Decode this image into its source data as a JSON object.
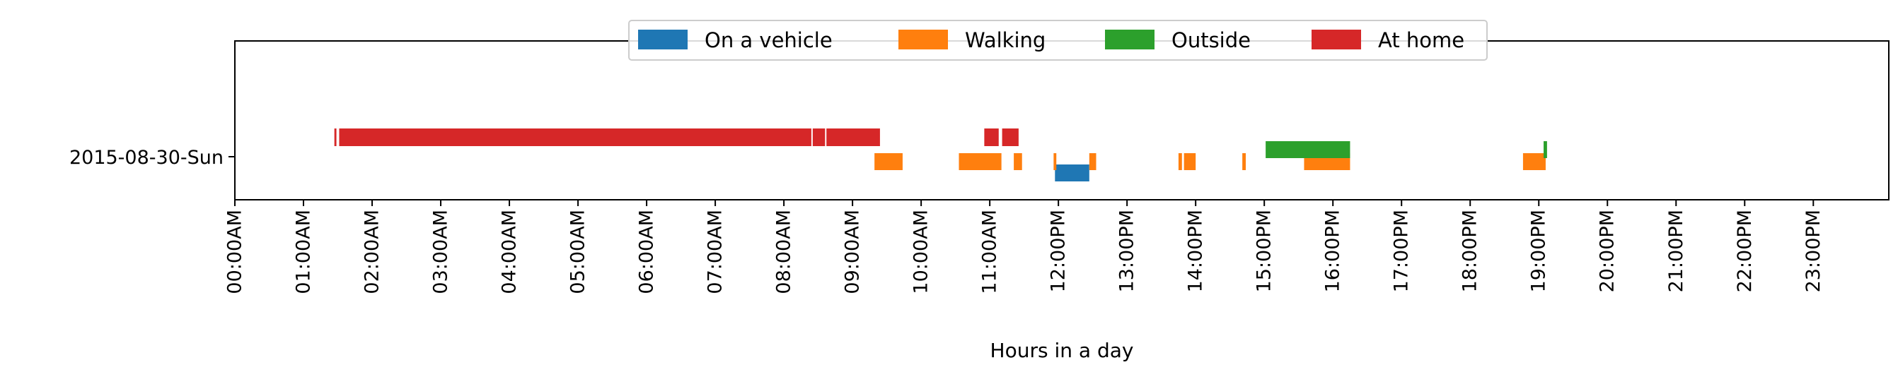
{
  "chart_data": {
    "type": "timeline",
    "title": "",
    "xlabel": "Hours in a day",
    "ylabel": "",
    "xlim": [
      0,
      24.1
    ],
    "grid": false,
    "legend_position": "top-center",
    "row_label": "2015-08-30-Sun",
    "x_ticks": [
      {
        "hour": 0,
        "label": "00:00AM"
      },
      {
        "hour": 1,
        "label": "01:00AM"
      },
      {
        "hour": 2,
        "label": "02:00AM"
      },
      {
        "hour": 3,
        "label": "03:00AM"
      },
      {
        "hour": 4,
        "label": "04:00AM"
      },
      {
        "hour": 5,
        "label": "05:00AM"
      },
      {
        "hour": 6,
        "label": "06:00AM"
      },
      {
        "hour": 7,
        "label": "07:00AM"
      },
      {
        "hour": 8,
        "label": "08:00AM"
      },
      {
        "hour": 9,
        "label": "09:00AM"
      },
      {
        "hour": 10,
        "label": "10:00AM"
      },
      {
        "hour": 11,
        "label": "11:00AM"
      },
      {
        "hour": 12,
        "label": "12:00PM"
      },
      {
        "hour": 13,
        "label": "13:00PM"
      },
      {
        "hour": 14,
        "label": "14:00PM"
      },
      {
        "hour": 15,
        "label": "15:00PM"
      },
      {
        "hour": 16,
        "label": "16:00PM"
      },
      {
        "hour": 17,
        "label": "17:00PM"
      },
      {
        "hour": 18,
        "label": "18:00PM"
      },
      {
        "hour": 19,
        "label": "19:00PM"
      },
      {
        "hour": 20,
        "label": "20:00PM"
      },
      {
        "hour": 21,
        "label": "21:00PM"
      },
      {
        "hour": 22,
        "label": "22:00PM"
      },
      {
        "hour": 23,
        "label": "23:00PM"
      }
    ],
    "series": [
      {
        "name": "On a vehicle",
        "color": "#1f77b4",
        "lane": "bottom",
        "intervals": [
          [
            11.95,
            12.45
          ]
        ]
      },
      {
        "name": "Walking",
        "color": "#ff7f0e",
        "lane": "middle-low",
        "intervals": [
          [
            9.32,
            9.73
          ],
          [
            10.55,
            11.17
          ],
          [
            11.35,
            11.47
          ],
          [
            11.93,
            11.97
          ],
          [
            12.45,
            12.55
          ],
          [
            13.75,
            13.8
          ],
          [
            13.83,
            14.0
          ],
          [
            14.68,
            14.73
          ],
          [
            15.58,
            16.25
          ],
          [
            18.77,
            19.1
          ]
        ]
      },
      {
        "name": "Outside",
        "color": "#2ca02c",
        "lane": "middle-high",
        "intervals": [
          [
            15.02,
            16.25
          ],
          [
            19.07,
            19.12
          ]
        ]
      },
      {
        "name": "At home",
        "color": "#d62728",
        "lane": "top",
        "intervals": [
          [
            1.45,
            1.48
          ],
          [
            1.52,
            8.4
          ],
          [
            8.42,
            8.6
          ],
          [
            8.62,
            9.4
          ],
          [
            10.92,
            11.13
          ],
          [
            11.18,
            11.42
          ]
        ]
      }
    ]
  }
}
